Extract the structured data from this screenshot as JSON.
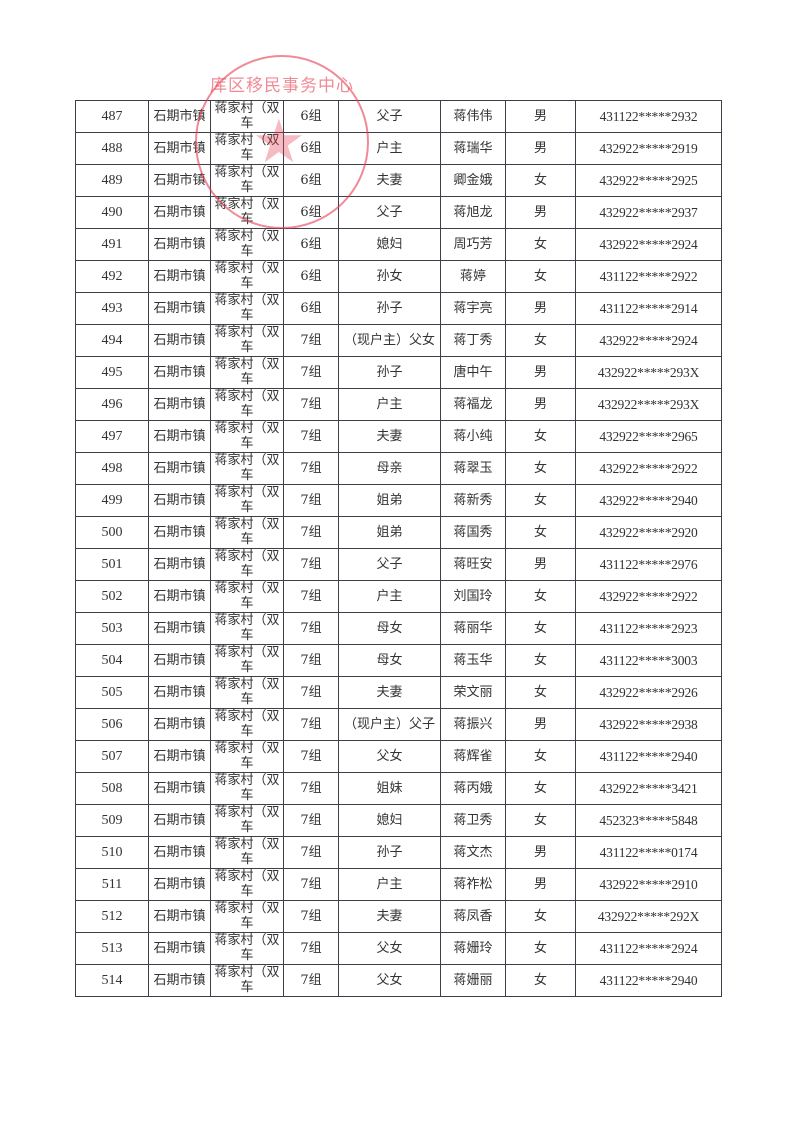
{
  "stamp": {
    "text": "库区移民事务中心",
    "color": "#e63c50"
  },
  "rows": [
    {
      "no": "487",
      "town": "石期市镇",
      "village": "蒋家村（双车",
      "group": "6组",
      "relation": "父子",
      "name": "蒋伟伟",
      "sex": "男",
      "id": "431122*****2932"
    },
    {
      "no": "488",
      "town": "石期市镇",
      "village": "蒋家村（双车",
      "group": "6组",
      "relation": "户主",
      "name": "蒋瑞华",
      "sex": "男",
      "id": "432922*****2919"
    },
    {
      "no": "489",
      "town": "石期市镇",
      "village": "蒋家村（双车",
      "group": "6组",
      "relation": "夫妻",
      "name": "卿金娥",
      "sex": "女",
      "id": "432922*****2925"
    },
    {
      "no": "490",
      "town": "石期市镇",
      "village": "蒋家村（双车",
      "group": "6组",
      "relation": "父子",
      "name": "蒋旭龙",
      "sex": "男",
      "id": "432922*****2937"
    },
    {
      "no": "491",
      "town": "石期市镇",
      "village": "蒋家村（双车",
      "group": "6组",
      "relation": "媳妇",
      "name": "周巧芳",
      "sex": "女",
      "id": "432922*****2924"
    },
    {
      "no": "492",
      "town": "石期市镇",
      "village": "蒋家村（双车",
      "group": "6组",
      "relation": "孙女",
      "name": "蒋婷",
      "sex": "女",
      "id": "431122*****2922"
    },
    {
      "no": "493",
      "town": "石期市镇",
      "village": "蒋家村（双车",
      "group": "6组",
      "relation": "孙子",
      "name": "蒋宇亮",
      "sex": "男",
      "id": "431122*****2914"
    },
    {
      "no": "494",
      "town": "石期市镇",
      "village": "蒋家村（双车",
      "group": "7组",
      "relation": "（现户主）父女",
      "name": "蒋丁秀",
      "sex": "女",
      "id": "432922*****2924"
    },
    {
      "no": "495",
      "town": "石期市镇",
      "village": "蒋家村（双车",
      "group": "7组",
      "relation": "孙子",
      "name": "唐中午",
      "sex": "男",
      "id": "432922*****293X"
    },
    {
      "no": "496",
      "town": "石期市镇",
      "village": "蒋家村（双车",
      "group": "7组",
      "relation": "户主",
      "name": "蒋福龙",
      "sex": "男",
      "id": "432922*****293X"
    },
    {
      "no": "497",
      "town": "石期市镇",
      "village": "蒋家村（双车",
      "group": "7组",
      "relation": "夫妻",
      "name": "蒋小纯",
      "sex": "女",
      "id": "432922*****2965"
    },
    {
      "no": "498",
      "town": "石期市镇",
      "village": "蒋家村（双车",
      "group": "7组",
      "relation": "母亲",
      "name": "蒋翠玉",
      "sex": "女",
      "id": "432922*****2922"
    },
    {
      "no": "499",
      "town": "石期市镇",
      "village": "蒋家村（双车",
      "group": "7组",
      "relation": "姐弟",
      "name": "蒋新秀",
      "sex": "女",
      "id": "432922*****2940"
    },
    {
      "no": "500",
      "town": "石期市镇",
      "village": "蒋家村（双车",
      "group": "7组",
      "relation": "姐弟",
      "name": "蒋国秀",
      "sex": "女",
      "id": "432922*****2920"
    },
    {
      "no": "501",
      "town": "石期市镇",
      "village": "蒋家村（双车",
      "group": "7组",
      "relation": "父子",
      "name": "蒋旺安",
      "sex": "男",
      "id": "431122*****2976"
    },
    {
      "no": "502",
      "town": "石期市镇",
      "village": "蒋家村（双车",
      "group": "7组",
      "relation": "户主",
      "name": "刘国玲",
      "sex": "女",
      "id": "432922*****2922"
    },
    {
      "no": "503",
      "town": "石期市镇",
      "village": "蒋家村（双车",
      "group": "7组",
      "relation": "母女",
      "name": "蒋丽华",
      "sex": "女",
      "id": "431122*****2923"
    },
    {
      "no": "504",
      "town": "石期市镇",
      "village": "蒋家村（双车",
      "group": "7组",
      "relation": "母女",
      "name": "蒋玉华",
      "sex": "女",
      "id": "431122*****3003"
    },
    {
      "no": "505",
      "town": "石期市镇",
      "village": "蒋家村（双车",
      "group": "7组",
      "relation": "夫妻",
      "name": "荣文丽",
      "sex": "女",
      "id": "432922*****2926"
    },
    {
      "no": "506",
      "town": "石期市镇",
      "village": "蒋家村（双车",
      "group": "7组",
      "relation": "（现户主）父子",
      "name": "蒋振兴",
      "sex": "男",
      "id": "432922*****2938"
    },
    {
      "no": "507",
      "town": "石期市镇",
      "village": "蒋家村（双车",
      "group": "7组",
      "relation": "父女",
      "name": "蒋辉雀",
      "sex": "女",
      "id": "431122*****2940"
    },
    {
      "no": "508",
      "town": "石期市镇",
      "village": "蒋家村（双车",
      "group": "7组",
      "relation": "姐妹",
      "name": "蒋丙娥",
      "sex": "女",
      "id": "432922*****3421"
    },
    {
      "no": "509",
      "town": "石期市镇",
      "village": "蒋家村（双车",
      "group": "7组",
      "relation": "媳妇",
      "name": "蒋卫秀",
      "sex": "女",
      "id": "452323*****5848"
    },
    {
      "no": "510",
      "town": "石期市镇",
      "village": "蒋家村（双车",
      "group": "7组",
      "relation": "孙子",
      "name": "蒋文杰",
      "sex": "男",
      "id": "431122*****0174"
    },
    {
      "no": "511",
      "town": "石期市镇",
      "village": "蒋家村（双车",
      "group": "7组",
      "relation": "户主",
      "name": "蒋祚松",
      "sex": "男",
      "id": "432922*****2910"
    },
    {
      "no": "512",
      "town": "石期市镇",
      "village": "蒋家村（双车",
      "group": "7组",
      "relation": "夫妻",
      "name": "蒋凤香",
      "sex": "女",
      "id": "432922*****292X"
    },
    {
      "no": "513",
      "town": "石期市镇",
      "village": "蒋家村（双车",
      "group": "7组",
      "relation": "父女",
      "name": "蒋姗玲",
      "sex": "女",
      "id": "431122*****2924"
    },
    {
      "no": "514",
      "town": "石期市镇",
      "village": "蒋家村（双车",
      "group": "7组",
      "relation": "父女",
      "name": "蒋姗丽",
      "sex": "女",
      "id": "431122*****2940"
    }
  ]
}
